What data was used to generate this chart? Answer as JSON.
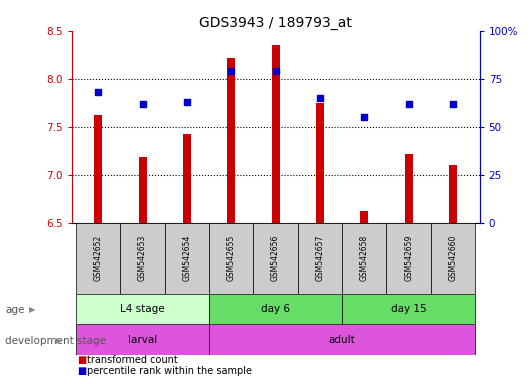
{
  "title": "GDS3943 / 189793_at",
  "samples": [
    "GSM542652",
    "GSM542653",
    "GSM542654",
    "GSM542655",
    "GSM542656",
    "GSM542657",
    "GSM542658",
    "GSM542659",
    "GSM542660"
  ],
  "transformed_counts": [
    7.62,
    7.18,
    7.42,
    8.22,
    8.35,
    7.75,
    6.62,
    7.22,
    7.1
  ],
  "percentile_ranks": [
    68,
    62,
    63,
    79,
    79,
    65,
    55,
    62,
    62
  ],
  "ylim_left": [
    6.5,
    8.5
  ],
  "ylim_right": [
    0,
    100
  ],
  "yticks_left": [
    6.5,
    7.0,
    7.5,
    8.0,
    8.5
  ],
  "yticks_right": [
    0,
    25,
    50,
    75,
    100
  ],
  "ytick_labels_right": [
    "0",
    "25",
    "50",
    "75",
    "100%"
  ],
  "bar_color": "#cc0000",
  "dot_color": "#0000cc",
  "bar_baseline": 6.5,
  "age_groups": [
    {
      "label": "L4 stage",
      "start": 0,
      "end": 3
    },
    {
      "label": "day 6",
      "start": 3,
      "end": 6
    },
    {
      "label": "day 15",
      "start": 6,
      "end": 9
    }
  ],
  "dev_groups": [
    {
      "label": "larval",
      "start": 0,
      "end": 3
    },
    {
      "label": "adult",
      "start": 3,
      "end": 9
    }
  ],
  "age_light_color": "#ccffcc",
  "age_dark_color": "#66dd66",
  "dev_color": "#dd55dd",
  "sample_box_color": "#cccccc",
  "grid_yticks": [
    7.0,
    7.5,
    8.0
  ],
  "grid_linestyle": ":",
  "grid_color": "black",
  "left_tick_color": "#cc0000",
  "right_tick_color": "#0000cc",
  "legend_items": [
    {
      "color": "#cc0000",
      "label": "transformed count"
    },
    {
      "color": "#0000cc",
      "label": "percentile rank within the sample"
    }
  ]
}
